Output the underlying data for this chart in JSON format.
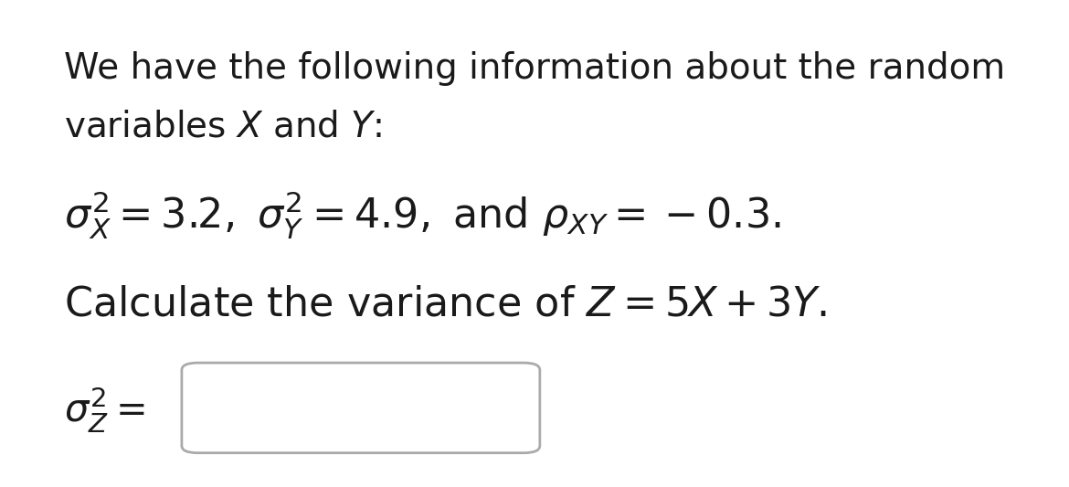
{
  "background_color": "#ffffff",
  "text_color": "#1a1a1a",
  "title_line1": "We have the following information about the random",
  "title_line2": "variables $X$ and $Y$:",
  "formula_line": "$\\sigma^2_X = 3.2,\\ \\sigma^2_Y = 4.9,\\ \\mathrm{and}\\ \\rho_{XY} = -0.3.$",
  "question_line": "Calculate the variance of $Z = 5X + 3Y.$",
  "answer_label": "$\\sigma^2_Z =$",
  "font_size_main": 28,
  "font_size_formula": 32,
  "font_size_answer": 30,
  "box_color": "#aaaaaa"
}
